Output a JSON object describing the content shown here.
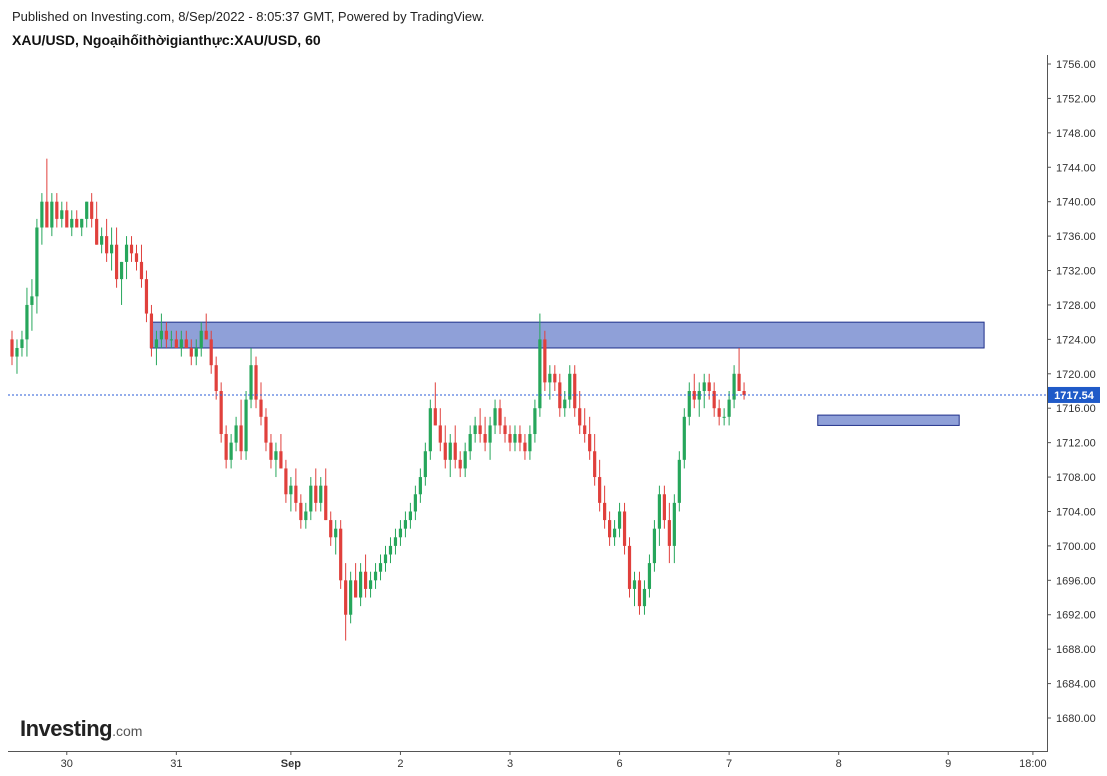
{
  "header": {
    "published": "Published on Investing.com, 8/Sep/2022 - 8:05:37 GMT, Powered by TradingView.",
    "symbol_line": "XAU/USD, Ngoạihốithờigianthực:XAU/USD, 60"
  },
  "logo": {
    "brand": "Investing",
    "suffix": ".com"
  },
  "colors": {
    "up": "#26a65b",
    "down": "#e0403c",
    "zone_fill": "#7b8fd1",
    "zone_stroke": "#1e2f8a",
    "price_line": "#2a5bd7",
    "price_label_bg": "#1f5ac8"
  },
  "chart_data": {
    "type": "candlestick",
    "timeframe": "60",
    "ylim": [
      1677,
      1757
    ],
    "y_ticks": [
      1680,
      1684,
      1688,
      1692,
      1696,
      1700,
      1704,
      1708,
      1712,
      1716,
      1720,
      1724,
      1728,
      1732,
      1736,
      1740,
      1744,
      1748,
      1752,
      1756
    ],
    "x_ticks": [
      {
        "label": "30",
        "bar": 11
      },
      {
        "label": "31",
        "bar": 33
      },
      {
        "label": "Sep",
        "bar": 56,
        "bold": true
      },
      {
        "label": "2",
        "bar": 78
      },
      {
        "label": "3",
        "bar": 100
      },
      {
        "label": "6",
        "bar": 122
      },
      {
        "label": "7",
        "bar": 144
      },
      {
        "label": "8",
        "bar": 166
      },
      {
        "label": "9",
        "bar": 188
      },
      {
        "label": "18:00",
        "bar": 205
      }
    ],
    "last_price": "1717.54",
    "last_value": 1717.54,
    "zones": [
      {
        "name": "resistance",
        "from_bar": 28,
        "to_bar": 195,
        "low": 1723.0,
        "high": 1726.0
      },
      {
        "name": "support",
        "from_bar": 162,
        "to_bar": 190,
        "low": 1714.0,
        "high": 1715.2
      }
    ],
    "ohlc": [
      [
        1724,
        1725,
        1721,
        1722
      ],
      [
        1722,
        1724,
        1720,
        1723
      ],
      [
        1723,
        1725,
        1722,
        1724
      ],
      [
        1724,
        1730,
        1722,
        1728
      ],
      [
        1728,
        1731,
        1725,
        1729
      ],
      [
        1729,
        1738,
        1727,
        1737
      ],
      [
        1737,
        1741,
        1735,
        1740
      ],
      [
        1740,
        1745,
        1737,
        1737
      ],
      [
        1737,
        1741,
        1736,
        1740
      ],
      [
        1740,
        1741,
        1737,
        1738
      ],
      [
        1738,
        1740,
        1737,
        1739
      ],
      [
        1739,
        1740,
        1737,
        1737
      ],
      [
        1737,
        1739,
        1736,
        1738
      ],
      [
        1738,
        1739,
        1737,
        1737
      ],
      [
        1737,
        1738,
        1736,
        1738
      ],
      [
        1738,
        1740,
        1737,
        1740
      ],
      [
        1740,
        1741,
        1737,
        1738
      ],
      [
        1738,
        1740,
        1735,
        1735
      ],
      [
        1735,
        1737,
        1734,
        1736
      ],
      [
        1736,
        1738,
        1733,
        1734
      ],
      [
        1734,
        1737,
        1732,
        1735
      ],
      [
        1735,
        1737,
        1730,
        1731
      ],
      [
        1731,
        1733,
        1728,
        1733
      ],
      [
        1733,
        1736,
        1731,
        1735
      ],
      [
        1735,
        1736,
        1733,
        1734
      ],
      [
        1734,
        1735,
        1732,
        1733
      ],
      [
        1733,
        1735,
        1730,
        1731
      ],
      [
        1731,
        1732,
        1726,
        1727
      ],
      [
        1727,
        1728,
        1722,
        1723
      ],
      [
        1723,
        1725,
        1721,
        1724
      ],
      [
        1724,
        1727,
        1723,
        1725
      ],
      [
        1725,
        1726,
        1723,
        1724
      ],
      [
        1724,
        1725,
        1723,
        1724
      ],
      [
        1724,
        1725,
        1723,
        1723
      ],
      [
        1723,
        1725,
        1722,
        1724
      ],
      [
        1724,
        1725,
        1723,
        1723
      ],
      [
        1723,
        1724,
        1721,
        1722
      ],
      [
        1722,
        1724,
        1721,
        1723
      ],
      [
        1723,
        1726,
        1722,
        1725
      ],
      [
        1725,
        1727,
        1724,
        1724
      ],
      [
        1724,
        1725,
        1720,
        1721
      ],
      [
        1721,
        1722,
        1717,
        1718
      ],
      [
        1718,
        1719,
        1712,
        1713
      ],
      [
        1713,
        1714,
        1709,
        1710
      ],
      [
        1710,
        1713,
        1709,
        1712
      ],
      [
        1712,
        1715,
        1711,
        1714
      ],
      [
        1714,
        1717,
        1710,
        1711
      ],
      [
        1711,
        1718,
        1710,
        1717
      ],
      [
        1717,
        1723,
        1716,
        1721
      ],
      [
        1721,
        1722,
        1716,
        1717
      ],
      [
        1717,
        1719,
        1714,
        1715
      ],
      [
        1715,
        1716,
        1711,
        1712
      ],
      [
        1712,
        1713,
        1709,
        1710
      ],
      [
        1710,
        1712,
        1708,
        1711
      ],
      [
        1711,
        1713,
        1709,
        1709
      ],
      [
        1709,
        1710,
        1705,
        1706
      ],
      [
        1706,
        1708,
        1704,
        1707
      ],
      [
        1707,
        1709,
        1704,
        1705
      ],
      [
        1705,
        1706,
        1702,
        1703
      ],
      [
        1703,
        1705,
        1702,
        1704
      ],
      [
        1704,
        1708,
        1703,
        1707
      ],
      [
        1707,
        1709,
        1704,
        1705
      ],
      [
        1705,
        1708,
        1704,
        1707
      ],
      [
        1707,
        1709,
        1703,
        1703
      ],
      [
        1703,
        1704,
        1700,
        1701
      ],
      [
        1701,
        1703,
        1699,
        1702
      ],
      [
        1702,
        1703,
        1695,
        1696
      ],
      [
        1696,
        1698,
        1689,
        1692
      ],
      [
        1692,
        1697,
        1691,
        1696
      ],
      [
        1696,
        1698,
        1694,
        1694
      ],
      [
        1694,
        1698,
        1693,
        1697
      ],
      [
        1697,
        1699,
        1694,
        1695
      ],
      [
        1695,
        1697,
        1694,
        1696
      ],
      [
        1696,
        1698,
        1695,
        1697
      ],
      [
        1697,
        1699,
        1696,
        1698
      ],
      [
        1698,
        1700,
        1697,
        1699
      ],
      [
        1699,
        1701,
        1698,
        1700
      ],
      [
        1700,
        1702,
        1699,
        1701
      ],
      [
        1701,
        1703,
        1700,
        1702
      ],
      [
        1702,
        1704,
        1701,
        1703
      ],
      [
        1703,
        1705,
        1702,
        1704
      ],
      [
        1704,
        1707,
        1703,
        1706
      ],
      [
        1706,
        1709,
        1705,
        1708
      ],
      [
        1708,
        1712,
        1707,
        1711
      ],
      [
        1711,
        1717,
        1710,
        1716
      ],
      [
        1716,
        1719,
        1714,
        1714
      ],
      [
        1714,
        1716,
        1711,
        1712
      ],
      [
        1712,
        1714,
        1709,
        1710
      ],
      [
        1710,
        1713,
        1708,
        1712
      ],
      [
        1712,
        1714,
        1709,
        1710
      ],
      [
        1710,
        1711,
        1708,
        1709
      ],
      [
        1709,
        1712,
        1708,
        1711
      ],
      [
        1711,
        1714,
        1710,
        1713
      ],
      [
        1713,
        1715,
        1712,
        1714
      ],
      [
        1714,
        1716,
        1712,
        1713
      ],
      [
        1713,
        1715,
        1711,
        1712
      ],
      [
        1712,
        1715,
        1710,
        1714
      ],
      [
        1714,
        1717,
        1713,
        1716
      ],
      [
        1716,
        1717,
        1713,
        1714
      ],
      [
        1714,
        1715,
        1712,
        1713
      ],
      [
        1713,
        1714,
        1711,
        1712
      ],
      [
        1712,
        1714,
        1711,
        1713
      ],
      [
        1713,
        1714,
        1711,
        1712
      ],
      [
        1712,
        1713,
        1710,
        1711
      ],
      [
        1711,
        1714,
        1710,
        1713
      ],
      [
        1713,
        1717,
        1712,
        1716
      ],
      [
        1716,
        1727,
        1715,
        1724
      ],
      [
        1724,
        1725,
        1718,
        1719
      ],
      [
        1719,
        1721,
        1717,
        1720
      ],
      [
        1720,
        1721,
        1718,
        1719
      ],
      [
        1719,
        1720,
        1715,
        1716
      ],
      [
        1716,
        1718,
        1715,
        1717
      ],
      [
        1717,
        1721,
        1716,
        1720
      ],
      [
        1720,
        1721,
        1715,
        1716
      ],
      [
        1716,
        1718,
        1713,
        1714
      ],
      [
        1714,
        1716,
        1712,
        1713
      ],
      [
        1713,
        1715,
        1710,
        1711
      ],
      [
        1711,
        1713,
        1707,
        1708
      ],
      [
        1708,
        1710,
        1704,
        1705
      ],
      [
        1705,
        1707,
        1702,
        1703
      ],
      [
        1703,
        1704,
        1700,
        1701
      ],
      [
        1701,
        1703,
        1700,
        1702
      ],
      [
        1702,
        1705,
        1701,
        1704
      ],
      [
        1704,
        1705,
        1699,
        1700
      ],
      [
        1700,
        1701,
        1694,
        1695
      ],
      [
        1695,
        1697,
        1693,
        1696
      ],
      [
        1696,
        1697,
        1692,
        1693
      ],
      [
        1693,
        1696,
        1692,
        1695
      ],
      [
        1695,
        1699,
        1694,
        1698
      ],
      [
        1698,
        1703,
        1697,
        1702
      ],
      [
        1702,
        1707,
        1700,
        1706
      ],
      [
        1706,
        1707,
        1702,
        1703
      ],
      [
        1703,
        1705,
        1698,
        1700
      ],
      [
        1700,
        1706,
        1698,
        1705
      ],
      [
        1705,
        1711,
        1704,
        1710
      ],
      [
        1710,
        1716,
        1709,
        1715
      ],
      [
        1715,
        1719,
        1714,
        1718
      ],
      [
        1718,
        1720,
        1716,
        1717
      ],
      [
        1717,
        1719,
        1715,
        1718
      ],
      [
        1718,
        1720,
        1716,
        1719
      ],
      [
        1719,
        1720,
        1717,
        1718
      ],
      [
        1718,
        1719,
        1715,
        1716
      ],
      [
        1716,
        1717,
        1714,
        1715
      ],
      [
        1715,
        1716,
        1714,
        1715
      ],
      [
        1715,
        1718,
        1714,
        1717
      ],
      [
        1717,
        1721,
        1716,
        1720
      ],
      [
        1720,
        1723,
        1718,
        1718
      ],
      [
        1718,
        1719,
        1717,
        1717.54
      ]
    ]
  }
}
